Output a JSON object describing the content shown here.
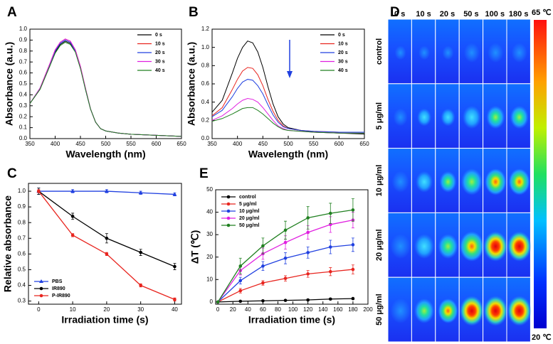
{
  "chart_data": [
    {
      "type": "line",
      "panel": "A",
      "xlabel": "Wavelength (nm)",
      "ylabel": "Absorbance (a.u.)",
      "x": [
        350,
        370,
        390,
        400,
        410,
        420,
        430,
        440,
        450,
        460,
        470,
        480,
        490,
        500,
        525,
        550,
        600,
        650
      ],
      "xlim": [
        350,
        650
      ],
      "xticks": [
        350,
        400,
        450,
        500,
        550,
        600,
        650
      ],
      "ylim": [
        0,
        1.0
      ],
      "yticks": [
        {
          "value": 0,
          "label": "0.0"
        },
        0.1,
        0.2,
        0.3,
        0.4,
        0.5,
        0.6,
        0.7,
        0.8,
        0.9,
        {
          "value": 1.0,
          "label": "1.0"
        }
      ],
      "legend": "upper right",
      "series": [
        {
          "name": "0 s",
          "color": "#000000",
          "values": [
            0.32,
            0.45,
            0.67,
            0.79,
            0.86,
            0.89,
            0.87,
            0.8,
            0.65,
            0.45,
            0.27,
            0.15,
            0.09,
            0.07,
            0.05,
            0.04,
            0.03,
            0.02
          ]
        },
        {
          "name": "10 s",
          "color": "#e8251f",
          "values": [
            0.32,
            0.46,
            0.69,
            0.81,
            0.88,
            0.91,
            0.89,
            0.81,
            0.66,
            0.46,
            0.27,
            0.15,
            0.09,
            0.07,
            0.05,
            0.04,
            0.03,
            0.02
          ]
        },
        {
          "name": "20 s",
          "color": "#2040e0",
          "values": [
            0.32,
            0.46,
            0.68,
            0.8,
            0.87,
            0.9,
            0.88,
            0.8,
            0.65,
            0.45,
            0.27,
            0.15,
            0.09,
            0.07,
            0.05,
            0.04,
            0.03,
            0.02
          ]
        },
        {
          "name": "30 s",
          "color": "#e020e0",
          "values": [
            0.32,
            0.46,
            0.69,
            0.81,
            0.88,
            0.91,
            0.89,
            0.81,
            0.66,
            0.46,
            0.27,
            0.15,
            0.09,
            0.07,
            0.05,
            0.04,
            0.03,
            0.02
          ]
        },
        {
          "name": "40 s",
          "color": "#208020",
          "values": [
            0.32,
            0.45,
            0.67,
            0.78,
            0.85,
            0.88,
            0.86,
            0.79,
            0.64,
            0.45,
            0.27,
            0.15,
            0.09,
            0.07,
            0.05,
            0.04,
            0.03,
            0.02
          ]
        }
      ]
    },
    {
      "type": "line",
      "panel": "B",
      "xlabel": "Wavelength (nm)",
      "ylabel": "Absorbance (a.u.)",
      "x": [
        350,
        370,
        390,
        400,
        410,
        420,
        430,
        440,
        450,
        460,
        470,
        480,
        490,
        500,
        525,
        550,
        600,
        650
      ],
      "xlim": [
        350,
        650
      ],
      "xticks": [
        350,
        400,
        450,
        500,
        550,
        600,
        650
      ],
      "ylim": [
        0,
        1.2
      ],
      "yticks": [
        {
          "value": 0,
          "label": "0.0"
        },
        0.2,
        0.4,
        0.6,
        0.8,
        {
          "value": 1.0,
          "label": "1.0"
        },
        1.2
      ],
      "legend": "upper right",
      "series": [
        {
          "name": "0 s",
          "color": "#000000",
          "values": [
            0.29,
            0.42,
            0.72,
            0.88,
            1.0,
            1.07,
            1.05,
            0.95,
            0.78,
            0.57,
            0.38,
            0.24,
            0.16,
            0.12,
            0.09,
            0.07,
            0.06,
            0.05
          ]
        },
        {
          "name": "10 s",
          "color": "#e8251f",
          "values": [
            0.25,
            0.34,
            0.54,
            0.65,
            0.74,
            0.78,
            0.77,
            0.7,
            0.58,
            0.43,
            0.3,
            0.2,
            0.14,
            0.11,
            0.09,
            0.08,
            0.07,
            0.07
          ]
        },
        {
          "name": "20 s",
          "color": "#2040e0",
          "values": [
            0.24,
            0.31,
            0.46,
            0.55,
            0.62,
            0.65,
            0.64,
            0.58,
            0.49,
            0.37,
            0.26,
            0.18,
            0.13,
            0.11,
            0.09,
            0.08,
            0.07,
            0.07
          ]
        },
        {
          "name": "30 s",
          "color": "#e020e0",
          "values": [
            0.2,
            0.25,
            0.33,
            0.38,
            0.42,
            0.44,
            0.43,
            0.4,
            0.34,
            0.27,
            0.2,
            0.14,
            0.11,
            0.09,
            0.08,
            0.07,
            0.06,
            0.06
          ]
        },
        {
          "name": "40 s",
          "color": "#208020",
          "values": [
            0.19,
            0.22,
            0.27,
            0.3,
            0.33,
            0.34,
            0.34,
            0.31,
            0.27,
            0.22,
            0.17,
            0.13,
            0.1,
            0.09,
            0.08,
            0.07,
            0.06,
            0.06
          ]
        }
      ]
    },
    {
      "type": "line",
      "panel": "C",
      "xlabel": "Irradiation time (s)",
      "ylabel": "Relative absorbance",
      "x": [
        0,
        10,
        20,
        30,
        40
      ],
      "xlim": [
        -3,
        42
      ],
      "xticks": [
        0,
        10,
        20,
        30,
        40
      ],
      "ylim": [
        0.28,
        1.05
      ],
      "yticks": [
        0.3,
        0.4,
        0.5,
        0.6,
        0.7,
        0.8,
        0.9,
        {
          "value": 1.0,
          "label": "1.0"
        }
      ],
      "legend": "lower left",
      "series": [
        {
          "name": "PBS",
          "color": "#2040e0",
          "marker": "triangle",
          "values": [
            1.0,
            1.0,
            1.0,
            0.99,
            0.98
          ],
          "errors": [
            0.02,
            0.01,
            0.01,
            0.01,
            0.01
          ]
        },
        {
          "name": "IR890",
          "color": "#000000",
          "marker": "circle",
          "values": [
            1.0,
            0.84,
            0.7,
            0.61,
            0.52
          ],
          "errors": [
            0.02,
            0.02,
            0.03,
            0.02,
            0.02
          ]
        },
        {
          "name": "P-IR890",
          "color": "#e8251f",
          "marker": "circle",
          "values": [
            1.0,
            0.72,
            0.6,
            0.4,
            0.31
          ],
          "errors": [
            0.01,
            0.01,
            0.01,
            0.01,
            0.01
          ]
        }
      ]
    },
    {
      "type": "line",
      "panel": "E",
      "xlabel": "Irradiation time (s)",
      "ylabel": "ΔT (℃)",
      "x": [
        0,
        30,
        60,
        90,
        120,
        150,
        180
      ],
      "xlim": [
        -3,
        200
      ],
      "xticks": [
        0,
        20,
        40,
        60,
        80,
        100,
        120,
        140,
        160,
        180,
        200
      ],
      "ylim": [
        -1,
        50
      ],
      "yticks": [
        0,
        10,
        20,
        30,
        40,
        50
      ],
      "legend": "upper left",
      "series": [
        {
          "name": "control",
          "color": "#000000",
          "marker": "circle",
          "values": [
            0,
            0.3,
            0.5,
            0.7,
            0.9,
            1.3,
            1.5
          ],
          "errors": [
            0,
            0.2,
            0.2,
            0.3,
            0.3,
            0.3,
            0.4
          ]
        },
        {
          "name": "5 μg/ml",
          "color": "#e8251f",
          "marker": "circle",
          "values": [
            0,
            5,
            8.5,
            10.5,
            12.5,
            13.5,
            14.5
          ],
          "errors": [
            0,
            1,
            1,
            1.2,
            1.5,
            1.8,
            2
          ]
        },
        {
          "name": "10 μg/ml",
          "color": "#2040e0",
          "marker": "circle",
          "values": [
            0,
            9.5,
            16,
            19.5,
            22,
            24.5,
            25.5
          ],
          "errors": [
            0,
            1.5,
            2,
            2.5,
            2.5,
            3,
            3
          ]
        },
        {
          "name": "20 μg/ml",
          "color": "#e020e0",
          "marker": "circle",
          "values": [
            0,
            14,
            21.5,
            26.5,
            31,
            34.5,
            36.5
          ],
          "errors": [
            0,
            2,
            2.5,
            3,
            3,
            3.5,
            3.5
          ]
        },
        {
          "name": "50 μg/ml",
          "color": "#208020",
          "marker": "circle",
          "values": [
            0,
            16,
            25,
            32,
            37.5,
            39.5,
            41
          ],
          "errors": [
            0,
            3.5,
            3.5,
            4,
            5,
            4.5,
            5
          ]
        }
      ]
    }
  ],
  "thermal_images": {
    "panel": "D",
    "times": [
      "0 s",
      "10 s",
      "20 s",
      "50 s",
      "100 s",
      "180 s"
    ],
    "groups": [
      "control",
      "5 μg/ml",
      "10 μg/ml",
      "20 μg/ml",
      "50 μg/ml"
    ],
    "scale_max": "65 ℃",
    "scale_min": "20 ℃"
  }
}
